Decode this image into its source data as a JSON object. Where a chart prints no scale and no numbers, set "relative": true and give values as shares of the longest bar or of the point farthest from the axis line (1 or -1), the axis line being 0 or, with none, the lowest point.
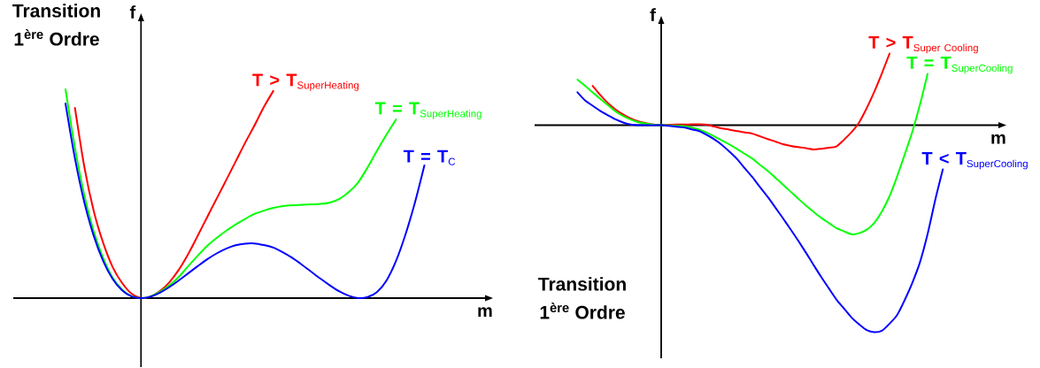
{
  "chart_data": [
    {
      "type": "line",
      "relative": true,
      "title": "Transition 1$^{ère}$ Ordre",
      "xlabel": "m",
      "ylabel": "f",
      "categories": [
        null,
        null,
        null,
        null,
        null,
        null,
        null,
        null,
        null,
        null,
        null,
        null,
        null,
        null,
        null,
        null,
        null,
        null,
        null,
        null,
        null,
        null,
        null,
        null,
        null,
        null,
        null,
        null,
        null,
        null,
        null,
        null,
        null,
        null,
        null,
        null,
        null,
        null,
        null
      ],
      "series": [
        {
          "name": "\\textbf{T > T}_{\\text{SuperHeating}}",
          "color": "#ff0000",
          "values": [
            null,
            0.911,
            0.627,
            0.415,
            0.263,
            0.148,
            0.072,
            0.021,
            0,
            0.008,
            0.034,
            0.076,
            0.136,
            0.212,
            0.299,
            0.388,
            0.476,
            0.564,
            0.653,
            0.742,
            0.826,
            0.915,
            0.992,
            null,
            null,
            null,
            null,
            null,
            null,
            null,
            null,
            null,
            null,
            null,
            null,
            null,
            null,
            null,
            null
          ]
        },
        {
          "name": "\\textbf{T = T}_{\\text{SuperHeating}}",
          "color": "#00ff00",
          "values": [
            1,
            0.72,
            0.492,
            0.318,
            0.191,
            0.097,
            0.04,
            0.009,
            0,
            0.008,
            0.03,
            0.061,
            0.102,
            0.153,
            0.203,
            0.25,
            0.288,
            0.322,
            0.352,
            0.379,
            0.403,
            0.419,
            0.432,
            0.441,
            0.445,
            0.447,
            0.449,
            0.451,
            0.458,
            0.475,
            0.508,
            0.555,
            0.627,
            0.708,
            0.784,
            0.856,
            null,
            null,
            null
          ]
        },
        {
          "name": "\\textbf{T = T}_{\\text{C}}",
          "color": "#0000ff",
          "values": [
            0.932,
            0.669,
            0.458,
            0.297,
            0.176,
            0.091,
            0.037,
            0.008,
            0,
            0.007,
            0.026,
            0.053,
            0.085,
            0.119,
            0.153,
            0.186,
            0.214,
            0.237,
            0.253,
            0.261,
            0.262,
            0.254,
            0.242,
            0.22,
            0.193,
            0.161,
            0.127,
            0.093,
            0.061,
            0.032,
            0.011,
            0,
            0.005,
            0.03,
            0.085,
            0.178,
            0.305,
            0.458,
            0.636
          ]
        }
      ]
    },
    {
      "type": "line",
      "relative": true,
      "title": "Transition 1$^{ère}$ Ordre",
      "xlabel": "m",
      "ylabel": "f",
      "categories": [
        null,
        null,
        null,
        null,
        null,
        null,
        null,
        null,
        null,
        null,
        null,
        null,
        null,
        null,
        null,
        null,
        null,
        null,
        null,
        null,
        null,
        null,
        null,
        null,
        null,
        null,
        null,
        null,
        null,
        null,
        null,
        null,
        null,
        null,
        null,
        null,
        null,
        null,
        null,
        null,
        null,
        null,
        null,
        null,
        null,
        null,
        null,
        null,
        null
      ],
      "series": [
        {
          "name": "\\textbf{T > T}_{\\text{Super Cooling}}",
          "color": "#ff0000",
          "values": [
            null,
            null,
            0.19,
            0.146,
            0.107,
            0.076,
            0.052,
            0.032,
            0.018,
            0.01,
            0.003,
            0,
            0.001,
            0.003,
            0.003,
            0.004,
            0.004,
            0.002,
            -0.007,
            -0.016,
            -0.022,
            -0.029,
            -0.035,
            -0.041,
            -0.054,
            -0.067,
            -0.079,
            -0.092,
            -0.1,
            -0.106,
            -0.111,
            -0.117,
            -0.114,
            -0.109,
            -0.103,
            -0.071,
            -0.034,
            0.013,
            0.082,
            0.162,
            0.251,
            0.346,
            null,
            null,
            null,
            null,
            null,
            null,
            null
          ]
        },
        {
          "name": "\\textbf{T = T}_{\\text{SuperCooling}}",
          "color": "#00ff00",
          "values": [
            0.22,
            0.19,
            0.158,
            0.127,
            0.097,
            0.066,
            0.044,
            0.027,
            0.014,
            0.008,
            0.002,
            0,
            -0.001,
            -0.003,
            -0.004,
            -0.012,
            -0.021,
            -0.036,
            -0.055,
            -0.074,
            -0.094,
            -0.116,
            -0.139,
            -0.162,
            -0.192,
            -0.221,
            -0.254,
            -0.287,
            -0.321,
            -0.355,
            -0.388,
            -0.418,
            -0.447,
            -0.472,
            -0.497,
            -0.512,
            -0.527,
            -0.522,
            -0.505,
            -0.472,
            -0.417,
            -0.343,
            -0.247,
            -0.141,
            -0.031,
            0.1,
            0.248,
            null,
            null
          ]
        },
        {
          "name": "\\textbf{T < T}_{\\text{SuperCooling}}",
          "color": "#0000ff",
          "values": [
            0.159,
            0.12,
            0.094,
            0.069,
            0.048,
            0.028,
            0.013,
            0.003,
            0,
            0,
            0,
            0,
            -0.003,
            -0.007,
            -0.011,
            -0.02,
            -0.029,
            -0.047,
            -0.069,
            -0.096,
            -0.129,
            -0.165,
            -0.209,
            -0.252,
            -0.3,
            -0.347,
            -0.398,
            -0.45,
            -0.503,
            -0.558,
            -0.615,
            -0.674,
            -0.732,
            -0.787,
            -0.841,
            -0.885,
            -0.929,
            -0.962,
            -0.99,
            -1,
            -0.993,
            -0.959,
            -0.917,
            -0.844,
            -0.761,
            -0.662,
            -0.526,
            -0.362,
            -0.214
          ]
        }
      ]
    }
  ]
}
